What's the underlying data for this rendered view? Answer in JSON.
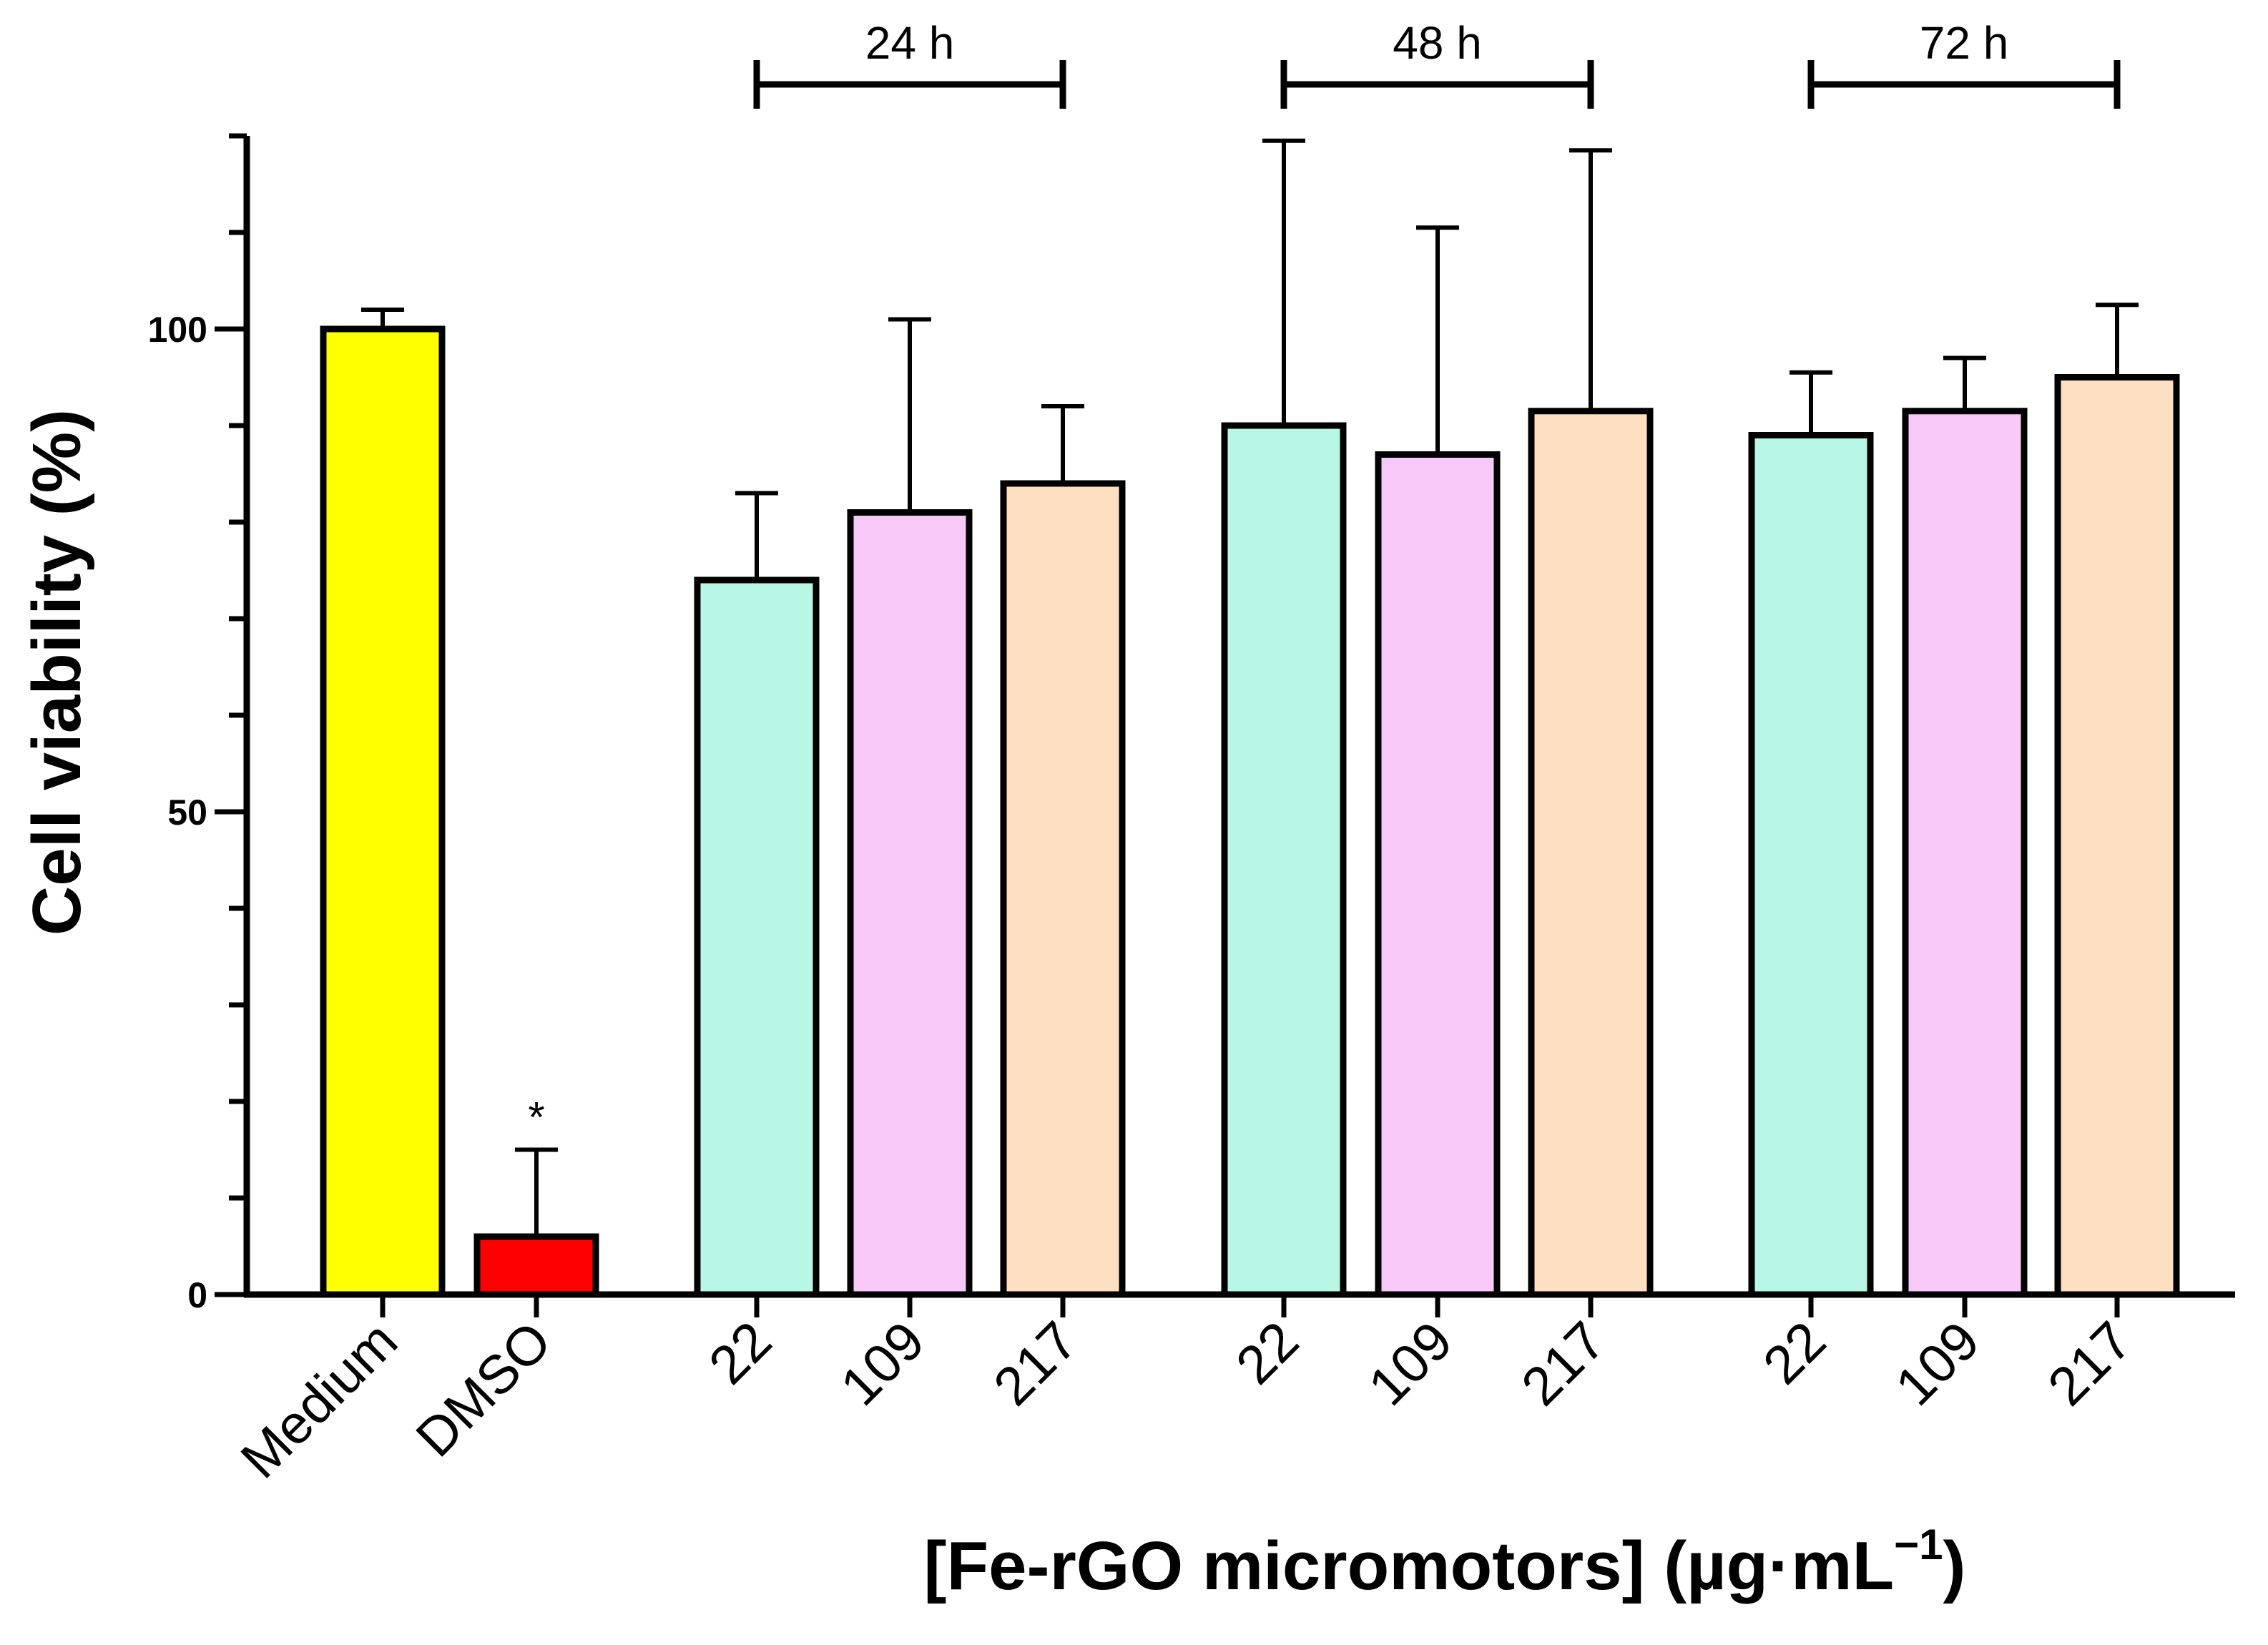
{
  "chart_data": {
    "type": "bar",
    "title": "",
    "ylabel": "Cell viability (%)",
    "xlabel_main": "[Fe-rGO micromotors] (µg·mL",
    "xlabel_sup": "−1",
    "xlabel_close": ")",
    "ylim": [
      0,
      120
    ],
    "yticks": [
      0,
      50,
      100
    ],
    "yticks_minor": [
      10,
      20,
      30,
      40,
      60,
      70,
      80,
      90,
      110,
      120
    ],
    "categories": [
      "Medium",
      "DMSO",
      "22",
      "109",
      "217",
      "22",
      "109",
      "217",
      "22",
      "109",
      "217"
    ],
    "values": [
      100,
      6,
      74,
      81,
      84,
      90,
      87,
      91.5,
      89,
      91.5,
      95
    ],
    "errors": [
      2,
      9,
      9,
      20,
      8,
      29.5,
      23.5,
      27,
      6.5,
      5.5,
      7.5
    ],
    "colors": [
      "#ffff00",
      "#ff0000",
      "#b8f7e6",
      "#f8c9f8",
      "#ffdfc1",
      "#b8f7e6",
      "#f8c9f8",
      "#ffdfc1",
      "#b8f7e6",
      "#f8c9f8",
      "#ffdfc1"
    ],
    "annotations": [
      {
        "category_index": 1,
        "text": "*"
      }
    ],
    "groups": [
      {
        "label": "24 h",
        "from_index": 2,
        "to_index": 4
      },
      {
        "label": "48 h",
        "from_index": 5,
        "to_index": 7
      },
      {
        "label": "72 h",
        "from_index": 8,
        "to_index": 10
      }
    ],
    "grid": false,
    "legend": "none"
  }
}
